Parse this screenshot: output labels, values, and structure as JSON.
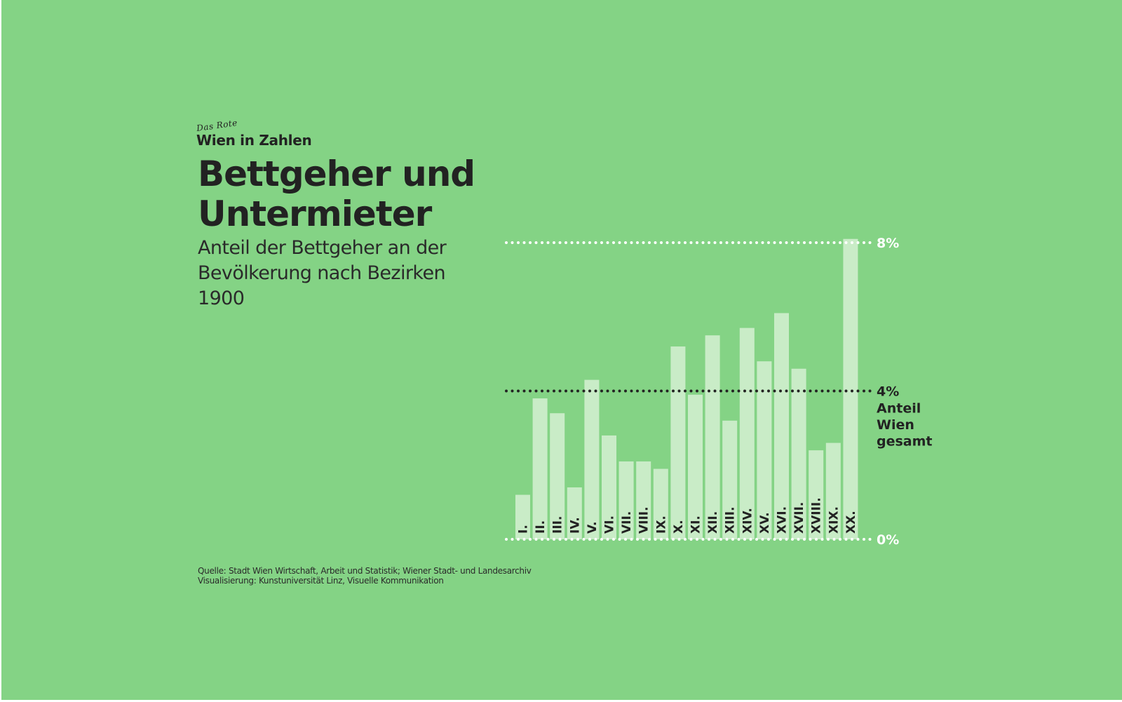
{
  "header": {
    "brand_small": "Das Rote",
    "brand": "Wien in Zahlen",
    "title_line1": "Bettgeher und",
    "title_line2": "Untermieter",
    "subtitle_line1": "Anteil der Bettgeher an der",
    "subtitle_line2": "Bevölkerung nach Bezirken",
    "subtitle_line3": "1900"
  },
  "footer": {
    "source": "Quelle: Stadt Wien Wirtschaft, Arbeit und Statistik; Wiener Stadt- und Landesarchiv",
    "visualization": "Visualisierung: Kunstuniversität Linz, Visuelle Kommunikation"
  },
  "colors": {
    "background": "#84d385",
    "bar": "#c9ecc7",
    "text": "#222222",
    "gridline_light": "#ffffff",
    "gridline_dark": "#222222"
  },
  "chart_data": {
    "type": "bar",
    "title": "Bettgeher und Untermieter",
    "subtitle": "Anteil der Bettgeher an der Bevölkerung nach Bezirken 1900",
    "xlabel": "",
    "ylabel": "",
    "unit": "%",
    "ylim": [
      0,
      8
    ],
    "categories": [
      "I.",
      "II.",
      "III.",
      "IV.",
      "V.",
      "VI.",
      "VII.",
      "VIII.",
      "IX.",
      "X.",
      "XI.",
      "XII.",
      "XIII.",
      "XIV.",
      "XV.",
      "XVI.",
      "XVII.",
      "XVIII.",
      "XIX.",
      "XX."
    ],
    "values": [
      1.2,
      3.8,
      3.4,
      1.4,
      4.3,
      2.8,
      2.1,
      2.1,
      1.9,
      5.2,
      3.9,
      5.5,
      3.2,
      5.7,
      4.8,
      6.1,
      4.6,
      2.4,
      2.6,
      8.1
    ],
    "reference_lines": [
      {
        "value": 8,
        "label": "8%",
        "style": "dotted-white"
      },
      {
        "value": 4,
        "label": "4%",
        "note": [
          "Anteil",
          "Wien",
          "gesamt"
        ],
        "style": "dotted-dark"
      },
      {
        "value": 0,
        "label": "0%",
        "style": "dotted-white"
      }
    ],
    "grid": false,
    "legend": "none"
  }
}
